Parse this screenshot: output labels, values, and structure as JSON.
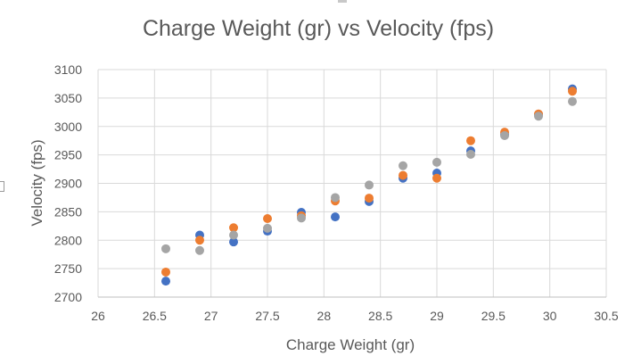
{
  "chart_data": {
    "type": "scatter",
    "title": "Charge Weight (gr) vs Velocity (fps)",
    "xlabel": "Charge Weight (gr)",
    "ylabel": "Velocity (fps)",
    "xlim": [
      26,
      30.5
    ],
    "ylim": [
      2700,
      3100
    ],
    "xticks": [
      26,
      26.5,
      27,
      27.5,
      28,
      28.5,
      29,
      29.5,
      30,
      30.5
    ],
    "yticks": [
      2700,
      2750,
      2800,
      2850,
      2900,
      2950,
      3000,
      3050,
      3100
    ],
    "grid": true,
    "series": [
      {
        "name": "Series 1",
        "color": "#4472c4",
        "x": [
          26.6,
          26.9,
          27.2,
          27.5,
          27.8,
          28.1,
          28.4,
          28.7,
          29.0,
          29.3,
          29.6,
          29.9,
          30.2
        ],
        "y": [
          2728,
          2809,
          2797,
          2816,
          2849,
          2841,
          2868,
          2909,
          2918,
          2957,
          2986,
          3021,
          3066
        ]
      },
      {
        "name": "Series 2",
        "color": "#ed7d31",
        "x": [
          26.6,
          26.9,
          27.2,
          27.5,
          27.8,
          28.1,
          28.4,
          28.7,
          29.0,
          29.3,
          29.6,
          29.9,
          30.2
        ],
        "y": [
          2744,
          2800,
          2822,
          2838,
          2843,
          2869,
          2874,
          2914,
          2909,
          2975,
          2990,
          3022,
          3062
        ]
      },
      {
        "name": "Series 3",
        "color": "#a5a5a5",
        "x": [
          26.6,
          26.9,
          27.2,
          27.5,
          27.8,
          28.1,
          28.4,
          28.7,
          29.0,
          29.3,
          29.6,
          29.9,
          30.2
        ],
        "y": [
          2785,
          2782,
          2809,
          2821,
          2839,
          2875,
          2897,
          2931,
          2937,
          2951,
          2984,
          3018,
          3044
        ]
      }
    ]
  }
}
